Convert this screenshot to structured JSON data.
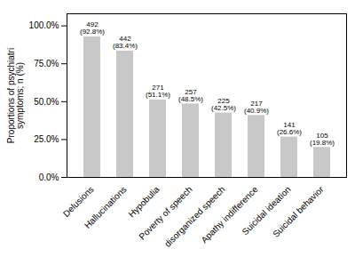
{
  "chart_data": {
    "type": "bar",
    "categories": [
      "Delusions",
      "Hallucinations",
      "Hypobulia",
      "Poverty of speech",
      "disorganized speech",
      "Apathy indifference",
      "Suicidal ideation",
      "Suicidal behavior"
    ],
    "values": [
      92.8,
      83.4,
      51.1,
      48.5,
      42.5,
      40.9,
      26.6,
      19.8
    ],
    "value_labels": [
      "492\n(92.8%)",
      "442\n(83.4%)",
      "271\n(51.1%)",
      "257\n(48.5%)",
      "225\n(42.5%)",
      "217\n(40.9%)",
      "141\n(26.6%)",
      "105\n(19.8%)"
    ],
    "data_labels": true,
    "color": "#c8c8c8",
    "ylabel": "Proportions of psychiatri\nsymptoms; n (%)",
    "ylim": [
      0,
      108
    ],
    "yticks": [
      {
        "value": 0,
        "label": "0.0%"
      },
      {
        "value": 25,
        "label": "25.0%"
      },
      {
        "value": 50,
        "label": "50.0%"
      },
      {
        "value": 75,
        "label": "75.0%"
      },
      {
        "value": 100,
        "label": "100.0%"
      }
    ],
    "grid": false
  }
}
